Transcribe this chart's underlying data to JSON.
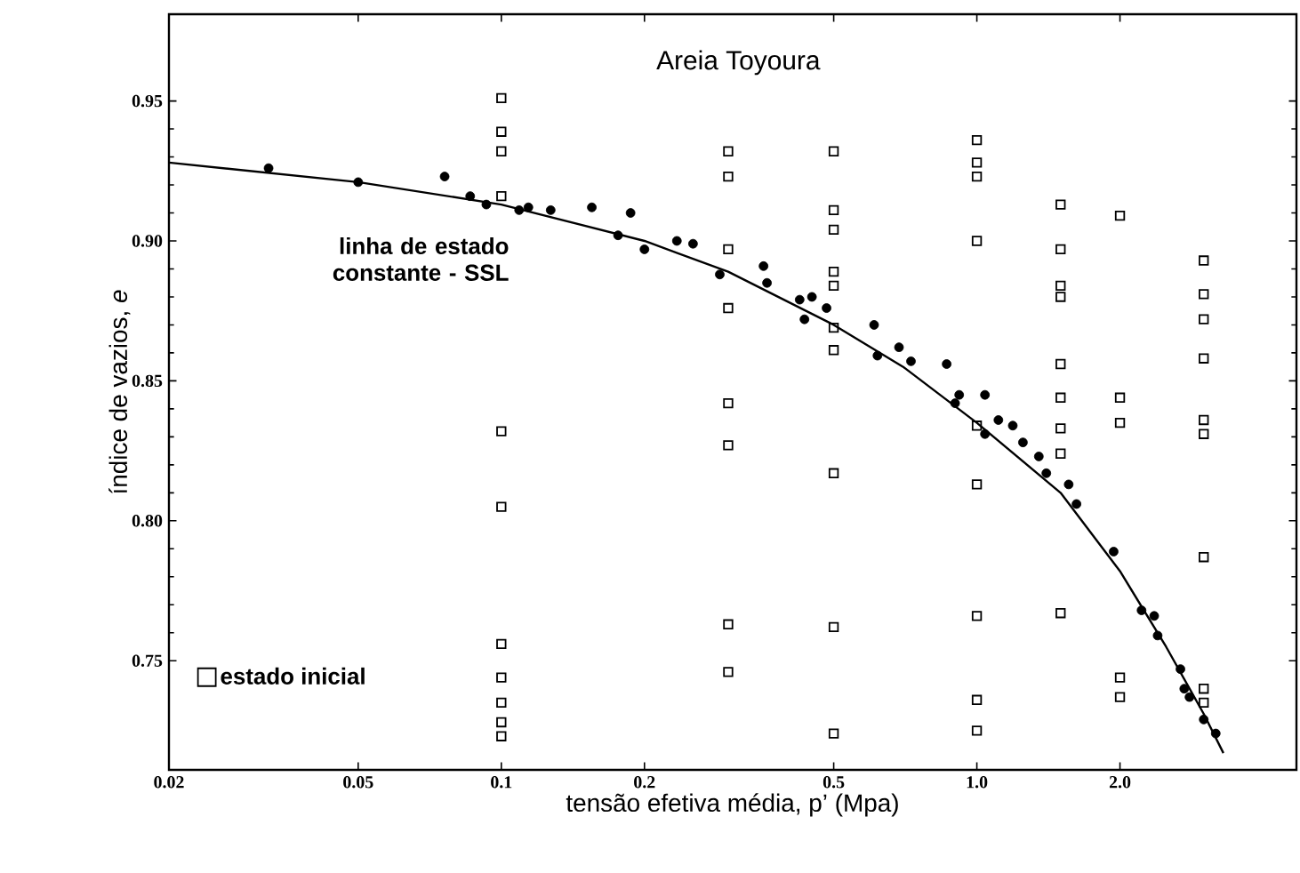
{
  "chart_data": {
    "type": "scatter",
    "title": "Areia Toyoura",
    "xlabel": "tensão efetiva média, p’ (Mpa)",
    "ylabel": "índice de vazios, *e*",
    "log": "x",
    "grid": false,
    "legend": "bottom left",
    "xlim": [
      0.02,
      4.7
    ],
    "ylim": [
      0.711,
      0.981
    ],
    "xticks": [
      {
        "value": 0.02,
        "label": "0.02"
      },
      0.05,
      0.1,
      0.2,
      0.5,
      {
        "value": 1,
        "label": "1.0"
      },
      {
        "value": 2,
        "label": "2.0"
      }
    ],
    "yticks": [
      0.75,
      {
        "value": 0.8,
        "label": "0.80"
      },
      0.85,
      {
        "value": 0.9,
        "label": "0.90"
      },
      0.95
    ],
    "series": [
      {
        "type": "line",
        "name": "linha de estado constante - SSL",
        "color": "#000000",
        "marker": "none",
        "line_style": "solid",
        "x": [
          0.02,
          0.05,
          0.1,
          0.2,
          0.3,
          0.5,
          0.7,
          1.0,
          1.5,
          2.0,
          2.5,
          3.0,
          3.3
        ],
        "values": [
          0.928,
          0.921,
          0.913,
          0.9,
          0.889,
          0.87,
          0.855,
          0.835,
          0.81,
          0.782,
          0.755,
          0.731,
          0.717
        ]
      },
      {
        "type": "scatter",
        "color": "#000000",
        "marker": "circle",
        "x": [
          0.0324,
          0.05,
          0.076,
          0.086,
          0.093,
          0.109,
          0.114,
          0.127,
          0.155,
          0.187,
          0.176,
          0.2,
          0.234,
          0.253,
          0.288,
          0.356,
          0.362,
          0.424,
          0.434,
          0.45,
          0.483,
          0.608,
          0.618,
          0.686,
          0.727,
          0.864,
          0.918,
          1.04,
          0.9,
          1.04,
          1.11,
          1.19,
          1.25,
          1.35,
          1.4,
          1.56,
          1.62,
          1.94,
          2.22,
          2.36,
          2.4,
          2.68,
          2.73,
          2.8,
          3.0,
          3.18
        ],
        "values": [
          0.926,
          0.921,
          0.923,
          0.916,
          0.913,
          0.911,
          0.912,
          0.911,
          0.912,
          0.91,
          0.902,
          0.897,
          0.9,
          0.899,
          0.888,
          0.891,
          0.885,
          0.879,
          0.872,
          0.88,
          0.876,
          0.87,
          0.859,
          0.862,
          0.857,
          0.856,
          0.845,
          0.845,
          0.842,
          0.831,
          0.836,
          0.834,
          0.828,
          0.823,
          0.817,
          0.813,
          0.806,
          0.789,
          0.768,
          0.766,
          0.759,
          0.747,
          0.74,
          0.737,
          0.729,
          0.724
        ]
      },
      {
        "type": "scatter",
        "name": "estado inicial",
        "color": "#000000",
        "marker": "square",
        "x": [
          0.1,
          0.1,
          0.1,
          0.1,
          0.1,
          0.1,
          0.1,
          0.1,
          0.1,
          0.1,
          0.1,
          0.3,
          0.3,
          0.3,
          0.3,
          0.3,
          0.3,
          0.3,
          0.3,
          0.5,
          0.5,
          0.5,
          0.5,
          0.5,
          0.5,
          0.5,
          0.5,
          0.5,
          0.5,
          1.0,
          1.0,
          1.0,
          1.0,
          1.0,
          1.0,
          1.0,
          1.0,
          1.0,
          1.5,
          1.5,
          1.5,
          1.5,
          1.5,
          1.5,
          1.5,
          1.5,
          1.5,
          2.0,
          2.0,
          2.0,
          2.0,
          2.0,
          3.0,
          3.0,
          3.0,
          3.0,
          3.0,
          3.0,
          3.0,
          3.0,
          3.0
        ],
        "values": [
          0.951,
          0.939,
          0.932,
          0.916,
          0.832,
          0.805,
          0.756,
          0.744,
          0.735,
          0.728,
          0.723,
          0.932,
          0.923,
          0.897,
          0.876,
          0.842,
          0.827,
          0.763,
          0.746,
          0.932,
          0.911,
          0.904,
          0.889,
          0.884,
          0.869,
          0.861,
          0.817,
          0.762,
          0.724,
          0.936,
          0.928,
          0.923,
          0.9,
          0.834,
          0.813,
          0.766,
          0.736,
          0.725,
          0.913,
          0.897,
          0.884,
          0.88,
          0.856,
          0.844,
          0.833,
          0.824,
          0.767,
          0.909,
          0.844,
          0.835,
          0.744,
          0.737,
          0.893,
          0.881,
          0.872,
          0.858,
          0.836,
          0.831,
          0.787,
          0.74,
          0.735
        ]
      }
    ]
  }
}
